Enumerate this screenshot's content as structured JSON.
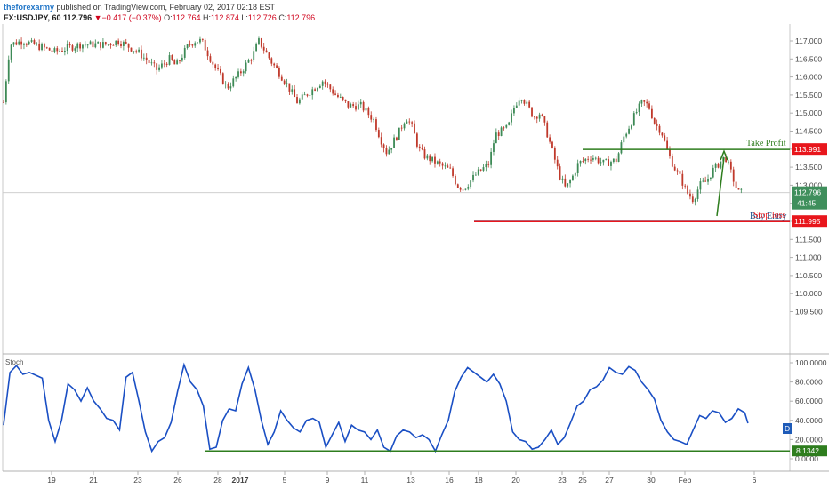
{
  "header": {
    "author": "theforexarmy",
    "published_text": "published on TradingView.com, February 02, 2017 02:18 EST"
  },
  "ohlc": {
    "symbol": "FX:USDJPY, 60",
    "last": "112.796",
    "change": "−0.417 (−0.37%)",
    "o_label": "O:",
    "o": "112.764",
    "h_label": "H:",
    "h": "112.874",
    "l_label": "L:",
    "l": "112.726",
    "c_label": "C:",
    "c": "112.796"
  },
  "colors": {
    "up": "#3d8a56",
    "down": "#c0392b",
    "take_profit": "#2e7d1e",
    "buy_entry": "#1a4f8a",
    "stop_loss": "#e8161c",
    "stoch_line": "#1a4fc4",
    "price_badge": "#3f8f5c",
    "stoch_badge": "#1e5bb8",
    "level_line": "#2e7d1e"
  },
  "chart_data": [
    {
      "type": "candlestick",
      "panel": "price",
      "y_range": [
        109.3,
        117.3
      ],
      "y_ticks": [
        "117.000",
        "116.500",
        "116.000",
        "115.500",
        "115.000",
        "114.500",
        "114.000",
        "113.500",
        "113.000",
        "112.500",
        "112.000",
        "111.500",
        "111.000",
        "110.500",
        "110.000",
        "109.500"
      ],
      "x_ticks": [
        "19",
        "21",
        "23",
        "26",
        "28",
        "2017",
        "5",
        "9",
        "11",
        "13",
        "16",
        "18",
        "20",
        "23",
        "25",
        "27",
        "30",
        "Feb",
        "6"
      ],
      "close_path": [
        [
          0,
          115.3
        ],
        [
          1,
          116.9
        ],
        [
          3,
          117.0
        ],
        [
          8,
          116.7
        ],
        [
          12,
          116.9
        ],
        [
          16,
          116.9
        ],
        [
          18,
          117.0
        ],
        [
          21,
          116.7
        ],
        [
          24,
          116.2
        ],
        [
          26,
          116.5
        ],
        [
          27,
          116.3
        ],
        [
          29,
          116.9
        ],
        [
          30,
          117.0
        ],
        [
          31,
          117.0
        ],
        [
          33,
          116.3
        ],
        [
          35,
          115.7
        ],
        [
          37,
          116.1
        ],
        [
          39,
          116.6
        ],
        [
          40,
          117.0
        ],
        [
          42,
          116.4
        ],
        [
          44,
          115.9
        ],
        [
          46,
          115.3
        ],
        [
          48,
          115.6
        ],
        [
          50,
          115.9
        ],
        [
          52,
          115.5
        ],
        [
          54,
          115.2
        ],
        [
          56,
          115.2
        ],
        [
          58,
          114.8
        ],
        [
          59,
          114.3
        ],
        [
          60,
          113.9
        ],
        [
          62,
          114.5
        ],
        [
          63,
          114.9
        ],
        [
          64,
          114.6
        ],
        [
          65,
          114.0
        ],
        [
          66,
          113.8
        ],
        [
          68,
          113.6
        ],
        [
          70,
          113.4
        ],
        [
          71,
          113.0
        ],
        [
          72,
          112.9
        ],
        [
          74,
          113.3
        ],
        [
          76,
          113.6
        ],
        [
          77,
          114.4
        ],
        [
          79,
          114.6
        ],
        [
          80,
          115.2
        ],
        [
          81,
          115.5
        ],
        [
          82,
          115.2
        ],
        [
          83,
          114.9
        ],
        [
          84,
          115.0
        ],
        [
          85,
          114.5
        ],
        [
          86,
          113.9
        ],
        [
          87,
          113.3
        ],
        [
          88,
          112.9
        ],
        [
          89,
          113.2
        ],
        [
          90,
          113.6
        ],
        [
          92,
          113.8
        ],
        [
          94,
          113.6
        ],
        [
          96,
          113.7
        ],
        [
          97,
          114.3
        ],
        [
          99,
          115.0
        ],
        [
          100,
          115.3
        ],
        [
          101,
          115.2
        ],
        [
          102,
          114.7
        ],
        [
          103,
          114.5
        ],
        [
          104,
          113.9
        ],
        [
          105,
          113.5
        ],
        [
          106,
          113.2
        ],
        [
          107,
          112.8
        ],
        [
          108,
          112.6
        ],
        [
          109,
          113.0
        ],
        [
          110,
          113.1
        ],
        [
          111,
          113.4
        ],
        [
          112,
          113.6
        ],
        [
          113,
          113.8
        ],
        [
          114,
          113.3
        ],
        [
          115,
          112.8
        ],
        [
          115.5,
          112.796
        ]
      ],
      "levels": [
        {
          "name": "Take Profit",
          "value": 113.991,
          "badge": "113.991"
        },
        {
          "name": "Buy Entry",
          "value": 112.796,
          "badge": "112.796",
          "badge_sub": "41:45"
        },
        {
          "name": "Stop loss",
          "value": 111.995,
          "badge": "111.995"
        }
      ],
      "labels": {
        "take_profit": "Take Profit",
        "buy_entry": "Buy Entry",
        "stop_loss": "Stop loss",
        "current_price": "112.796",
        "countdown": "41:45"
      }
    },
    {
      "type": "line",
      "panel": "indicator",
      "title": "Stoch",
      "y_range": [
        0,
        100
      ],
      "y_ticks": [
        "100.0000",
        "80.0000",
        "60.0000",
        "40.0000",
        "20.0000",
        "0.0000"
      ],
      "series": [
        {
          "values": [
            [
              0,
              35
            ],
            [
              1,
              90
            ],
            [
              2,
              97
            ],
            [
              3,
              88
            ],
            [
              4,
              90
            ],
            [
              5,
              87
            ],
            [
              6,
              84
            ],
            [
              7,
              40
            ],
            [
              8,
              18
            ],
            [
              9,
              40
            ],
            [
              10,
              78
            ],
            [
              11,
              72
            ],
            [
              12,
              60
            ],
            [
              13,
              74
            ],
            [
              14,
              60
            ],
            [
              15,
              52
            ],
            [
              16,
              42
            ],
            [
              17,
              40
            ],
            [
              18,
              30
            ],
            [
              19,
              85
            ],
            [
              20,
              90
            ],
            [
              21,
              60
            ],
            [
              22,
              28
            ],
            [
              23,
              8
            ],
            [
              24,
              18
            ],
            [
              25,
              22
            ],
            [
              26,
              38
            ],
            [
              27,
              70
            ],
            [
              28,
              98
            ],
            [
              29,
              80
            ],
            [
              30,
              72
            ],
            [
              31,
              55
            ],
            [
              32,
              10
            ],
            [
              33,
              12
            ],
            [
              34,
              40
            ],
            [
              35,
              52
            ],
            [
              36,
              50
            ],
            [
              37,
              78
            ],
            [
              38,
              95
            ],
            [
              39,
              72
            ],
            [
              40,
              40
            ],
            [
              41,
              15
            ],
            [
              42,
              28
            ],
            [
              43,
              50
            ],
            [
              44,
              40
            ],
            [
              45,
              32
            ],
            [
              46,
              28
            ],
            [
              47,
              40
            ],
            [
              48,
              42
            ],
            [
              49,
              38
            ],
            [
              50,
              12
            ],
            [
              51,
              25
            ],
            [
              52,
              38
            ],
            [
              53,
              18
            ],
            [
              54,
              35
            ],
            [
              55,
              30
            ],
            [
              56,
              28
            ],
            [
              57,
              20
            ],
            [
              58,
              30
            ],
            [
              59,
              12
            ],
            [
              60,
              8
            ],
            [
              61,
              24
            ],
            [
              62,
              30
            ],
            [
              63,
              28
            ],
            [
              64,
              22
            ],
            [
              65,
              25
            ],
            [
              66,
              20
            ],
            [
              67,
              8
            ],
            [
              68,
              25
            ],
            [
              69,
              40
            ],
            [
              70,
              70
            ],
            [
              71,
              85
            ],
            [
              72,
              95
            ],
            [
              73,
              90
            ],
            [
              74,
              85
            ],
            [
              75,
              80
            ],
            [
              76,
              88
            ],
            [
              77,
              78
            ],
            [
              78,
              60
            ],
            [
              79,
              28
            ],
            [
              80,
              20
            ],
            [
              81,
              18
            ],
            [
              82,
              10
            ],
            [
              83,
              12
            ],
            [
              84,
              20
            ],
            [
              85,
              30
            ],
            [
              86,
              15
            ],
            [
              87,
              22
            ],
            [
              88,
              38
            ],
            [
              89,
              55
            ],
            [
              90,
              60
            ],
            [
              91,
              72
            ],
            [
              92,
              75
            ],
            [
              93,
              82
            ],
            [
              94,
              95
            ],
            [
              95,
              90
            ],
            [
              96,
              88
            ],
            [
              97,
              96
            ],
            [
              98,
              92
            ],
            [
              99,
              80
            ],
            [
              100,
              72
            ],
            [
              101,
              62
            ],
            [
              102,
              40
            ],
            [
              103,
              28
            ],
            [
              104,
              20
            ],
            [
              105,
              18
            ],
            [
              106,
              15
            ],
            [
              107,
              30
            ],
            [
              108,
              45
            ],
            [
              109,
              42
            ],
            [
              110,
              50
            ],
            [
              111,
              48
            ],
            [
              112,
              38
            ],
            [
              113,
              42
            ],
            [
              114,
              52
            ],
            [
              115,
              48
            ],
            [
              115.5,
              37
            ]
          ]
        }
      ],
      "level": {
        "value": 8.1342,
        "badge": "8.1342"
      },
      "series_marker": "D"
    }
  ]
}
